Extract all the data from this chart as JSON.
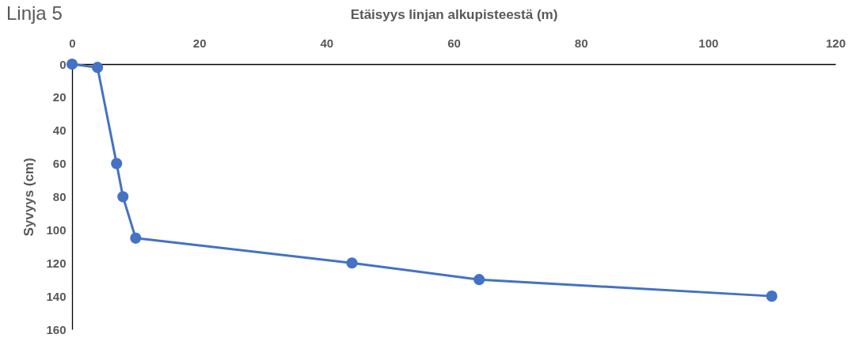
{
  "chart_data": {
    "type": "line",
    "title": "Linja 5",
    "xlabel": "Etäisyys linjan alkupisteestä (m)",
    "ylabel": "Syvyys (cm)",
    "x": [
      0,
      4,
      7,
      8,
      10,
      44,
      64,
      110
    ],
    "series": [
      {
        "color": "#4472c4",
        "values": [
          0,
          2,
          60,
          80,
          105,
          120,
          130,
          140
        ]
      }
    ],
    "xlim": [
      0,
      120
    ],
    "xticks": [
      0,
      20,
      40,
      60,
      80,
      100,
      120
    ],
    "ylim": [
      160,
      0
    ],
    "yticks": [
      0,
      20,
      40,
      60,
      80,
      100,
      120,
      140,
      160
    ],
    "grid": false,
    "marker": "circle",
    "line_style": "solid"
  }
}
